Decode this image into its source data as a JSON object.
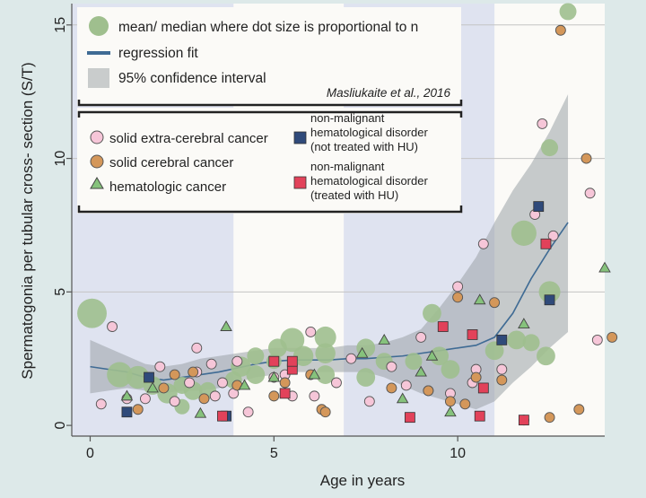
{
  "chart_data": {
    "type": "scatter",
    "xlabel": "Age in years",
    "ylabel": "Spermatogonia per tubular cross- section (S/T)",
    "xlim": [
      -0.5,
      14
    ],
    "ylim": [
      -0.4,
      15.8
    ],
    "xticks": [
      0,
      5,
      10
    ],
    "yticks": [
      0,
      5,
      10,
      15
    ],
    "age_bands": [
      [
        -0.5,
        3.9
      ],
      [
        6.9,
        11
      ]
    ],
    "colors": {
      "mean_dot": "#9fbf8e",
      "fit": "#3f6b94",
      "ci": "#9aa3a8",
      "band": "#dfe3f0",
      "plot_bg": "#fbfaf7",
      "outer_bg": "#dde9e9",
      "solid_extra": "#f6c6d8",
      "solid_cerebral": "#d4975a",
      "hematologic": "#86c27c",
      "nonmal_untreated": "#2f4a7a",
      "nonmal_treated": "#e2425a"
    },
    "legend": {
      "mean": "mean/ median where dot size is proportional to n",
      "fit": "regression fit",
      "ci": "95% confidence interval",
      "citation": "Masliukaite et al., 2016",
      "solid_extra": "solid extra-cerebral cancer",
      "solid_cerebral": "solid cerebral cancer",
      "hematologic": "hematologic cancer",
      "nonmal_untreated": [
        "non-malignant",
        "hematological disorder",
        "(not treated with HU)"
      ],
      "nonmal_treated": [
        "non-malignant",
        "hematological disorder",
        "(treated with HU)"
      ]
    },
    "regression_fit": [
      [
        0,
        2.2
      ],
      [
        0.5,
        2.1
      ],
      [
        1,
        2.0
      ],
      [
        1.5,
        1.8
      ],
      [
        2,
        1.7
      ],
      [
        2.5,
        1.8
      ],
      [
        3,
        1.9
      ],
      [
        3.5,
        2.0
      ],
      [
        4,
        2.15
      ],
      [
        4.5,
        2.3
      ],
      [
        5,
        2.4
      ],
      [
        5.5,
        2.45
      ],
      [
        6,
        2.45
      ],
      [
        6.5,
        2.45
      ],
      [
        7,
        2.5
      ],
      [
        7.5,
        2.5
      ],
      [
        8,
        2.55
      ],
      [
        8.5,
        2.6
      ],
      [
        9,
        2.7
      ],
      [
        9.5,
        2.8
      ],
      [
        10,
        2.9
      ],
      [
        10.5,
        3.0
      ],
      [
        11,
        3.3
      ],
      [
        11.5,
        4.2
      ],
      [
        12,
        5.5
      ],
      [
        12.5,
        6.6
      ],
      [
        13,
        7.6
      ]
    ],
    "ci_upper": [
      [
        0,
        3.2
      ],
      [
        0.5,
        2.9
      ],
      [
        1,
        2.6
      ],
      [
        1.5,
        2.3
      ],
      [
        2,
        2.2
      ],
      [
        2.5,
        2.3
      ],
      [
        3,
        2.5
      ],
      [
        3.5,
        2.6
      ],
      [
        4,
        2.7
      ],
      [
        4.5,
        2.8
      ],
      [
        5,
        2.9
      ],
      [
        5.5,
        2.9
      ],
      [
        6,
        2.9
      ],
      [
        6.5,
        2.9
      ],
      [
        7,
        3.0
      ],
      [
        7.5,
        3.0
      ],
      [
        8,
        3.1
      ],
      [
        8.5,
        3.3
      ],
      [
        9,
        3.6
      ],
      [
        9.5,
        4.4
      ],
      [
        10,
        5.3
      ],
      [
        10.5,
        6.3
      ],
      [
        11,
        7.6
      ],
      [
        11.5,
        8.8
      ],
      [
        12,
        9.8
      ],
      [
        12.5,
        11.0
      ],
      [
        13,
        12.4
      ]
    ],
    "ci_lower": [
      [
        0,
        1.2
      ],
      [
        0.5,
        1.3
      ],
      [
        1,
        1.4
      ],
      [
        1.5,
        1.3
      ],
      [
        2,
        1.2
      ],
      [
        2.5,
        1.3
      ],
      [
        3,
        1.3
      ],
      [
        3.5,
        1.4
      ],
      [
        4,
        1.6
      ],
      [
        4.5,
        1.8
      ],
      [
        5,
        1.9
      ],
      [
        5.5,
        2.0
      ],
      [
        6,
        2.0
      ],
      [
        6.5,
        2.0
      ],
      [
        7,
        2.0
      ],
      [
        7.5,
        2.0
      ],
      [
        8,
        1.8
      ],
      [
        8.5,
        1.5
      ],
      [
        9,
        1.2
      ],
      [
        9.5,
        1.0
      ],
      [
        10,
        0.8
      ],
      [
        10.5,
        0.6
      ],
      [
        11,
        0.9
      ],
      [
        11.5,
        1.6
      ],
      [
        12,
        2.2
      ],
      [
        12.5,
        2.9
      ],
      [
        13,
        3.5
      ]
    ],
    "mean_median": [
      {
        "x": 0.05,
        "y": 4.2,
        "n": 30
      },
      {
        "x": 0.8,
        "y": 1.9,
        "n": 22
      },
      {
        "x": 1.3,
        "y": 1.8,
        "n": 18
      },
      {
        "x": 1.7,
        "y": 1.5,
        "n": 12
      },
      {
        "x": 2.1,
        "y": 1.2,
        "n": 14
      },
      {
        "x": 2.5,
        "y": 1.5,
        "n": 10
      },
      {
        "x": 2.8,
        "y": 1.3,
        "n": 12
      },
      {
        "x": 3.2,
        "y": 1.3,
        "n": 10
      },
      {
        "x": 2.5,
        "y": 0.7,
        "n": 8
      },
      {
        "x": 3.9,
        "y": 1.7,
        "n": 10
      },
      {
        "x": 4.1,
        "y": 2.2,
        "n": 14
      },
      {
        "x": 4.5,
        "y": 2.6,
        "n": 10
      },
      {
        "x": 4.5,
        "y": 1.9,
        "n": 12
      },
      {
        "x": 5.0,
        "y": 2.4,
        "n": 8
      },
      {
        "x": 5.1,
        "y": 2.9,
        "n": 12
      },
      {
        "x": 5.5,
        "y": 3.2,
        "n": 20
      },
      {
        "x": 5.8,
        "y": 2.6,
        "n": 14
      },
      {
        "x": 6.4,
        "y": 3.3,
        "n": 16
      },
      {
        "x": 6.4,
        "y": 2.7,
        "n": 14
      },
      {
        "x": 6.4,
        "y": 1.9,
        "n": 12
      },
      {
        "x": 7.5,
        "y": 2.9,
        "n": 12
      },
      {
        "x": 7.5,
        "y": 1.8,
        "n": 12
      },
      {
        "x": 8.0,
        "y": 2.4,
        "n": 10
      },
      {
        "x": 8.8,
        "y": 2.4,
        "n": 10
      },
      {
        "x": 9.3,
        "y": 4.2,
        "n": 12
      },
      {
        "x": 9.5,
        "y": 2.6,
        "n": 12
      },
      {
        "x": 9.8,
        "y": 2.1,
        "n": 12
      },
      {
        "x": 11.0,
        "y": 2.8,
        "n": 12
      },
      {
        "x": 11.6,
        "y": 3.2,
        "n": 12
      },
      {
        "x": 11.8,
        "y": 7.2,
        "n": 22
      },
      {
        "x": 12.0,
        "y": 3.1,
        "n": 10
      },
      {
        "x": 12.4,
        "y": 2.6,
        "n": 12
      },
      {
        "x": 12.5,
        "y": 5.0,
        "n": 16
      },
      {
        "x": 12.5,
        "y": 10.4,
        "n": 10
      },
      {
        "x": 13.0,
        "y": 15.5,
        "n": 10
      }
    ],
    "solid_extra_cerebral": [
      [
        0.3,
        0.8
      ],
      [
        0.6,
        3.7
      ],
      [
        1.0,
        1.0
      ],
      [
        1.5,
        1.0
      ],
      [
        1.9,
        2.2
      ],
      [
        2.3,
        0.9
      ],
      [
        2.7,
        1.6
      ],
      [
        2.9,
        2.0
      ],
      [
        2.9,
        2.9
      ],
      [
        3.3,
        2.3
      ],
      [
        3.6,
        1.6
      ],
      [
        3.4,
        1.1
      ],
      [
        3.9,
        1.2
      ],
      [
        4.0,
        2.4
      ],
      [
        4.3,
        0.5
      ],
      [
        5.0,
        1.8
      ],
      [
        5.3,
        1.9
      ],
      [
        5.5,
        1.1
      ],
      [
        6.0,
        3.5
      ],
      [
        6.1,
        1.1
      ],
      [
        6.7,
        1.6
      ],
      [
        7.1,
        2.5
      ],
      [
        7.6,
        0.9
      ],
      [
        8.2,
        2.2
      ],
      [
        8.6,
        1.5
      ],
      [
        9.0,
        3.3
      ],
      [
        9.2,
        1.3
      ],
      [
        9.8,
        1.2
      ],
      [
        10.0,
        5.2
      ],
      [
        10.5,
        2.1
      ],
      [
        10.4,
        1.6
      ],
      [
        10.7,
        6.8
      ],
      [
        11.2,
        2.1
      ],
      [
        11.8,
        0.2
      ],
      [
        12.1,
        7.9
      ],
      [
        12.3,
        11.3
      ],
      [
        12.6,
        7.1
      ],
      [
        13.6,
        8.7
      ],
      [
        13.8,
        3.2
      ]
    ],
    "solid_cerebral": [
      [
        1.3,
        0.6
      ],
      [
        2.0,
        1.4
      ],
      [
        2.3,
        1.9
      ],
      [
        2.8,
        2.0
      ],
      [
        3.1,
        1.0
      ],
      [
        4.0,
        1.5
      ],
      [
        5.0,
        1.1
      ],
      [
        5.3,
        1.6
      ],
      [
        6.0,
        1.9
      ],
      [
        6.3,
        0.6
      ],
      [
        6.4,
        0.5
      ],
      [
        8.2,
        1.4
      ],
      [
        9.2,
        1.3
      ],
      [
        9.8,
        0.9
      ],
      [
        10.0,
        4.8
      ],
      [
        10.2,
        0.8
      ],
      [
        10.5,
        1.8
      ],
      [
        11.0,
        4.6
      ],
      [
        11.2,
        1.7
      ],
      [
        12.5,
        0.3
      ],
      [
        12.8,
        14.8
      ],
      [
        13.3,
        0.6
      ],
      [
        13.5,
        10.0
      ],
      [
        14.2,
        3.3
      ]
    ],
    "hematologic": [
      [
        1.0,
        1.1
      ],
      [
        1.7,
        1.4
      ],
      [
        3.0,
        0.45
      ],
      [
        3.7,
        3.7
      ],
      [
        4.2,
        1.5
      ],
      [
        5.0,
        1.8
      ],
      [
        6.1,
        1.9
      ],
      [
        7.4,
        2.7
      ],
      [
        8.0,
        3.2
      ],
      [
        8.5,
        1.0
      ],
      [
        9.0,
        2.0
      ],
      [
        9.3,
        2.6
      ],
      [
        9.8,
        0.5
      ],
      [
        10.6,
        4.7
      ],
      [
        11.8,
        3.8
      ],
      [
        14.0,
        5.9
      ]
    ],
    "nonmal_untreated": [
      [
        1.0,
        0.5
      ],
      [
        1.6,
        1.8
      ],
      [
        3.7,
        0.35
      ],
      [
        11.2,
        3.2
      ],
      [
        12.2,
        8.2
      ],
      [
        12.5,
        4.7
      ]
    ],
    "nonmal_treated": [
      [
        3.6,
        0.35
      ],
      [
        5.0,
        2.4
      ],
      [
        5.3,
        1.2
      ],
      [
        5.5,
        2.1
      ],
      [
        5.5,
        2.4
      ],
      [
        8.7,
        0.3
      ],
      [
        9.6,
        3.7
      ],
      [
        10.4,
        3.4
      ],
      [
        10.6,
        0.35
      ],
      [
        10.7,
        1.4
      ],
      [
        11.8,
        0.2
      ],
      [
        12.4,
        6.8
      ]
    ]
  }
}
